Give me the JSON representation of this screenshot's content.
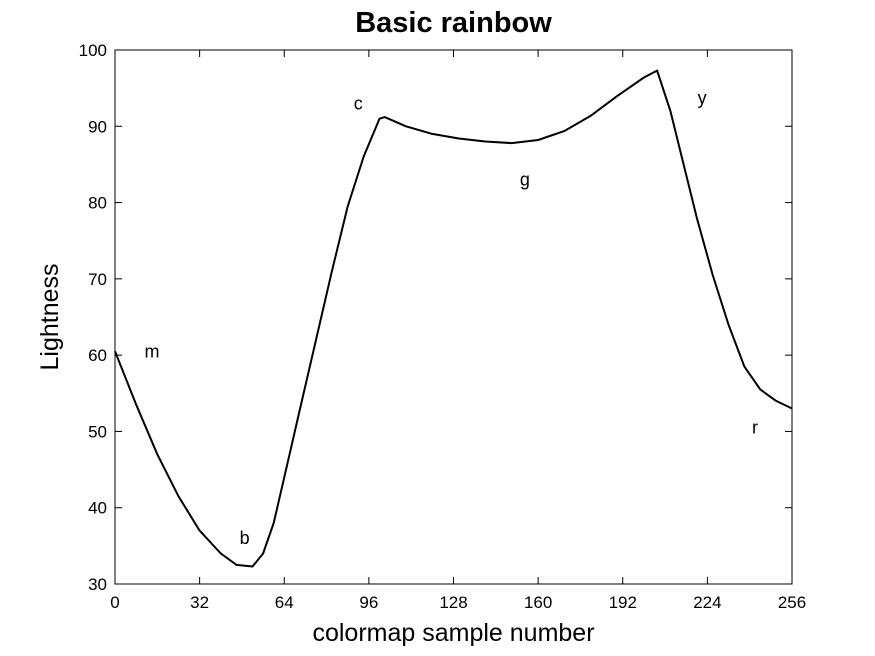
{
  "chart_data": {
    "type": "line",
    "title": "Basic rainbow",
    "xlabel": "colormap sample number",
    "ylabel": "Lightness",
    "xlim": [
      0,
      256
    ],
    "ylim": [
      30,
      100
    ],
    "xticks": [
      0,
      32,
      64,
      96,
      128,
      160,
      192,
      224,
      256
    ],
    "yticks": [
      30,
      40,
      50,
      60,
      70,
      80,
      90,
      100
    ],
    "grid": false,
    "series": [
      {
        "color": "#000000",
        "x": [
          0,
          8,
          16,
          24,
          32,
          40,
          46,
          52,
          56,
          60,
          64,
          70,
          76,
          82,
          88,
          94,
          100,
          102,
          110,
          120,
          130,
          140,
          150,
          160,
          170,
          180,
          190,
          200,
          205,
          210,
          215,
          220,
          226,
          232,
          238,
          244,
          250,
          256
        ],
        "y": [
          60.5,
          53.5,
          47,
          41.5,
          37,
          34,
          32.5,
          32.3,
          34,
          38,
          44,
          53,
          62,
          71,
          79.5,
          86,
          91,
          91.2,
          90,
          89,
          88.4,
          88,
          87.8,
          88.2,
          89.4,
          91.4,
          94,
          96.4,
          97.3,
          92,
          85,
          78,
          70.5,
          64,
          58.5,
          55.5,
          54,
          53
        ]
      }
    ],
    "annotations": [
      {
        "text": "m",
        "x": 14,
        "y": 60.5
      },
      {
        "text": "b",
        "x": 49,
        "y": 36
      },
      {
        "text": "c",
        "x": 92,
        "y": 93
      },
      {
        "text": "g",
        "x": 155,
        "y": 83
      },
      {
        "text": "y",
        "x": 222,
        "y": 93.7
      },
      {
        "text": "r",
        "x": 242,
        "y": 50.5
      }
    ]
  }
}
